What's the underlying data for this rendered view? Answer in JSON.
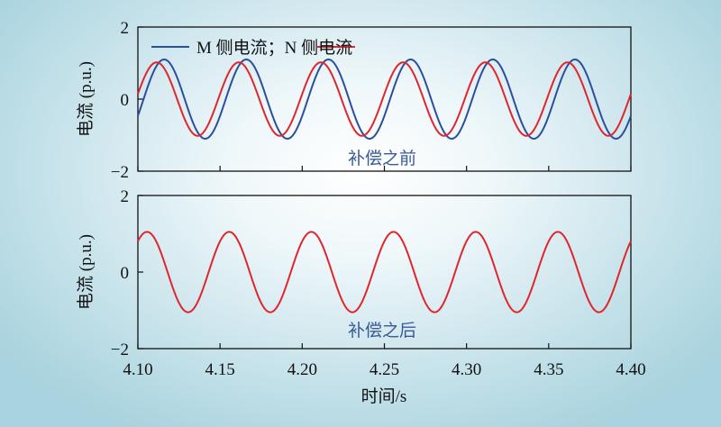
{
  "chart_data": [
    {
      "type": "line",
      "id": "before",
      "ylabel": "电流 (p.u.)",
      "ylim": [
        -2,
        2
      ],
      "xlim": [
        4.1,
        4.4
      ],
      "yticks": [
        "2",
        "0",
        "−2"
      ],
      "annotation": "补偿之前",
      "legend": {
        "placement": "top-left",
        "text": "M 侧电流；N 侧电流"
      },
      "series": [
        {
          "name": "M 侧电流",
          "color": "#2a4f9f",
          "amplitude": 1.1,
          "frequency_hz": 20,
          "phase_deg": -25
        },
        {
          "name": "N 侧电流",
          "color": "#e0262d",
          "amplitude": 1.02,
          "frequency_hz": 20,
          "phase_deg": 8
        }
      ]
    },
    {
      "type": "line",
      "id": "after",
      "ylabel": "电流 (p.u.)",
      "ylim": [
        -2,
        2
      ],
      "xlim": [
        4.1,
        4.4
      ],
      "yticks": [
        "2",
        "0",
        "−2"
      ],
      "annotation": "补偿之后",
      "series": [
        {
          "color": "#e0262d",
          "amplitude": 1.05,
          "frequency_hz": 20,
          "phase_deg": 50
        }
      ],
      "xticks": [
        "4.10",
        "4.15",
        "4.20",
        "4.25",
        "4.30",
        "4.35",
        "4.40"
      ],
      "xlabel": "时间/s"
    }
  ]
}
